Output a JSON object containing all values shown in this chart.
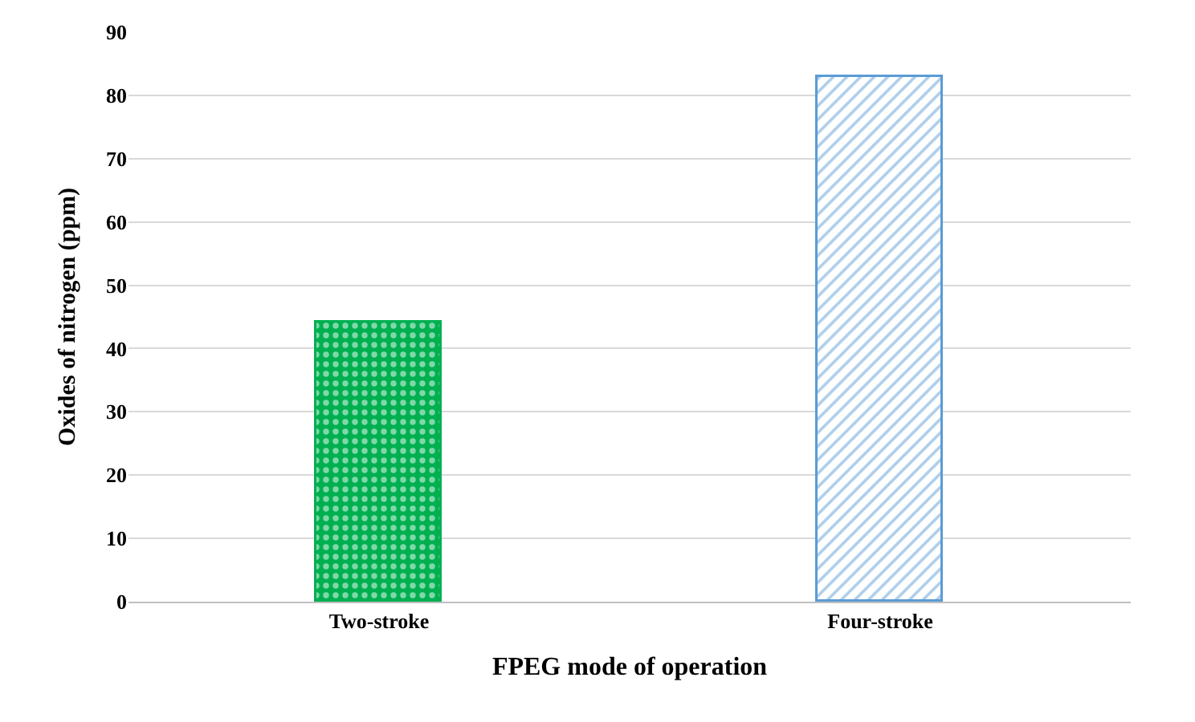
{
  "chart_data": {
    "type": "bar",
    "xlabel": "FPEG mode of operation",
    "ylabel": "Oxides of nitrogen (ppm)",
    "categories": [
      "Two-stroke",
      "Four-stroke"
    ],
    "values": [
      44,
      83
    ],
    "colors": [
      "#00b050",
      "#5b9bd5"
    ],
    "ylim": [
      0,
      90
    ],
    "yticks": [
      0,
      10,
      20,
      30,
      40,
      50,
      60,
      70,
      80,
      90
    ],
    "grid": "y"
  }
}
